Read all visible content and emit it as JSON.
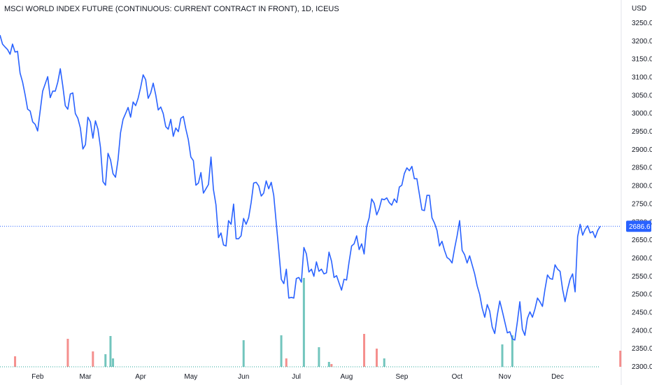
{
  "title": "MSCI WORLD INDEX FUTURE (CONTINUOUS: CURRENT CONTRACT IN FRONT), 1D, ICEUS",
  "currency": "USD",
  "current_value_label": "2686.6",
  "colors": {
    "line": "#2962ff",
    "vol_up": "#26a69a",
    "vol_down": "#ef5350",
    "last_price_badge": "#2962ff",
    "baseline": "#26a69a"
  },
  "chart_data": {
    "type": "line",
    "title": "MSCI WORLD INDEX FUTURE (CONTINUOUS: CURRENT CONTRACT IN FRONT), 1D, ICEUS",
    "xlabel": "",
    "ylabel": "USD",
    "ylim": [
      2290,
      3275
    ],
    "yticks": [
      "3250.0",
      "3200.0",
      "3150.0",
      "3100.0",
      "3050.0",
      "3000.0",
      "2950.0",
      "2900.0",
      "2850.0",
      "2800.0",
      "2750.0",
      "2700.0",
      "2650.0",
      "2600.0",
      "2550.0",
      "2500.0",
      "2450.0",
      "2400.0",
      "2350.0",
      "2300.0"
    ],
    "xtick_labels": [
      "Feb",
      "Mar",
      "Apr",
      "May",
      "Jun",
      "Jul",
      "Aug",
      "Sep",
      "Oct",
      "Nov",
      "Dec"
    ],
    "xtick_index": [
      15,
      34,
      56,
      76,
      97,
      118,
      138,
      160,
      182,
      201,
      222
    ],
    "last_value": 2686.6,
    "grid": false,
    "series": [
      {
        "values": [
          3215,
          3190,
          3182,
          3175,
          3162,
          3190,
          3168,
          3170,
          3110,
          3085,
          3050,
          3010,
          3005,
          2975,
          2968,
          2950,
          3005,
          3060,
          3080,
          3100,
          3042,
          3060,
          3060,
          3085,
          3122,
          3075,
          3020,
          3010,
          3052,
          3055,
          2998,
          2985,
          2958,
          2900,
          2912,
          2988,
          2975,
          2930,
          2978,
          2955,
          2905,
          2810,
          2800,
          2888,
          2870,
          2832,
          2822,
          2870,
          2945,
          2982,
          2998,
          3015,
          2988,
          3030,
          3020,
          3040,
          3070,
          3105,
          3092,
          3040,
          3055,
          3082,
          3050,
          3008,
          3016,
          2998,
          2962,
          2955,
          2982,
          2935,
          2958,
          2948,
          2985,
          2990,
          2955,
          2926,
          2878,
          2868,
          2800,
          2806,
          2835,
          2778,
          2790,
          2802,
          2878,
          2788,
          2746,
          2655,
          2668,
          2635,
          2632,
          2702,
          2692,
          2748,
          2652,
          2652,
          2660,
          2708,
          2692,
          2710,
          2752,
          2806,
          2808,
          2798,
          2770,
          2778,
          2812,
          2790,
          2808,
          2772,
          2695,
          2620,
          2540,
          2528,
          2568,
          2488,
          2490,
          2488,
          2542,
          2545,
          2532,
          2628,
          2610,
          2560,
          2568,
          2548,
          2588,
          2562,
          2568,
          2555,
          2558,
          2615,
          2590,
          2545,
          2550,
          2530,
          2510,
          2540,
          2538,
          2588,
          2632,
          2638,
          2660,
          2622,
          2638,
          2610,
          2685,
          2710,
          2762,
          2750,
          2718,
          2735,
          2762,
          2760,
          2765,
          2752,
          2745,
          2762,
          2752,
          2795,
          2800,
          2832,
          2848,
          2840,
          2852,
          2818,
          2818,
          2775,
          2732,
          2730,
          2772,
          2772,
          2710,
          2695,
          2675,
          2632,
          2645,
          2620,
          2600,
          2595,
          2585,
          2625,
          2660,
          2702,
          2620,
          2608,
          2585,
          2605,
          2580,
          2555,
          2522,
          2498,
          2460,
          2435,
          2470,
          2452,
          2408,
          2390,
          2440,
          2480,
          2452,
          2422,
          2392,
          2395,
          2375,
          2372,
          2422,
          2478,
          2402,
          2385,
          2432,
          2450,
          2435,
          2458,
          2488,
          2478,
          2465,
          2512,
          2552,
          2542,
          2540,
          2580,
          2568,
          2562,
          2512,
          2478,
          2512,
          2540,
          2555,
          2505,
          2658,
          2692,
          2662,
          2678,
          2688,
          2668,
          2672,
          2655,
          2675,
          2686.6
        ]
      }
    ],
    "volume": [
      {
        "i": 6,
        "v": 15,
        "c": "down"
      },
      {
        "i": 27,
        "v": 40,
        "c": "down"
      },
      {
        "i": 37,
        "v": 22,
        "c": "down"
      },
      {
        "i": 42,
        "v": 18,
        "c": "up"
      },
      {
        "i": 44,
        "v": 44,
        "c": "up"
      },
      {
        "i": 45,
        "v": 12,
        "c": "up"
      },
      {
        "i": 97,
        "v": 38,
        "c": "up"
      },
      {
        "i": 112,
        "v": 45,
        "c": "up"
      },
      {
        "i": 114,
        "v": 12,
        "c": "down"
      },
      {
        "i": 121,
        "v": 127,
        "c": "up"
      },
      {
        "i": 127,
        "v": 28,
        "c": "up"
      },
      {
        "i": 131,
        "v": 7,
        "c": "up"
      },
      {
        "i": 132,
        "v": 4,
        "c": "down"
      },
      {
        "i": 145,
        "v": 47,
        "c": "down"
      },
      {
        "i": 150,
        "v": 26,
        "c": "down"
      },
      {
        "i": 153,
        "v": 12,
        "c": "up"
      },
      {
        "i": 200,
        "v": 32,
        "c": "up"
      },
      {
        "i": 204,
        "v": 45,
        "c": "up"
      },
      {
        "i": 247,
        "v": 23,
        "c": "down"
      }
    ]
  }
}
